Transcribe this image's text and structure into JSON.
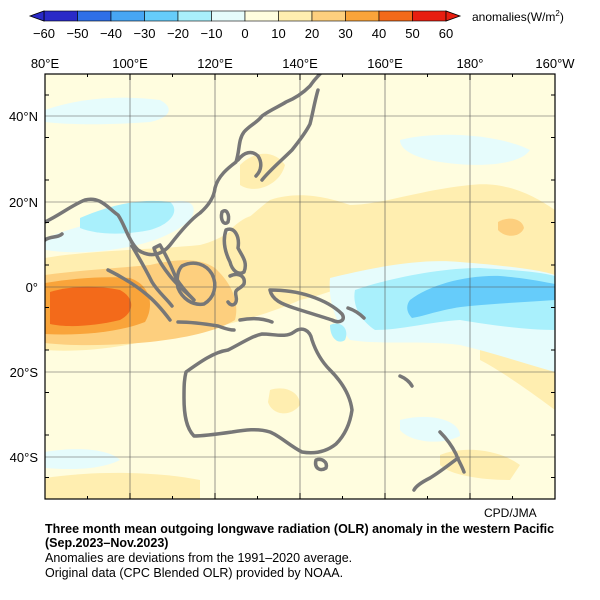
{
  "colorbar": {
    "ticks": [
      "−60",
      "−50",
      "−40",
      "−30",
      "−20",
      "−10",
      "0",
      "10",
      "20",
      "30",
      "40",
      "50",
      "60"
    ],
    "colors": [
      "#2a2ac8",
      "#2f6fe8",
      "#47a6f4",
      "#66ccfa",
      "#a9f0fc",
      "#e6fcfc",
      "#fffddf",
      "#ffeeb0",
      "#fdcf7e",
      "#f9a43a",
      "#f36a1a",
      "#e81e10"
    ],
    "units_prefix": "anomalies(W/m",
    "units_sup": "2",
    "units_suffix": ")"
  },
  "map": {
    "lon_labels": [
      "80°E",
      "100°E",
      "120°E",
      "140°E",
      "160°E",
      "180°",
      "160°W"
    ],
    "lat_labels": [
      "40°N",
      "20°N",
      "0°",
      "20°S",
      "40°S"
    ],
    "background_color": "#fffddf",
    "coast_color": "#777777"
  },
  "credit": "CPD/JMA",
  "caption": {
    "title_line1": "Three month mean outgoing longwave radiation (OLR) anomaly in the western Pacific",
    "title_line2": "(Sep.2023–Nov.2023)",
    "line3": "Anomalies are deviations from the 1991–2020 average.",
    "line4": "Original data (CPC Blended OLR) provided by NOAA."
  }
}
